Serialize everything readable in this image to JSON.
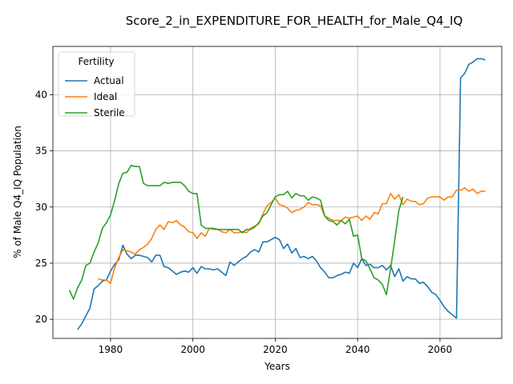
{
  "chart_data": {
    "type": "line",
    "title": "Score_2_in_EXPENDITURE_FOR_HEALTH_for_Male_Q4_IQ",
    "xlabel": "Years",
    "ylabel": "% of Male Q4_IQ Population",
    "xlim": [
      1966,
      2075
    ],
    "ylim": [
      18.3,
      44.3
    ],
    "xticks": [
      1980,
      2000,
      2020,
      2040,
      2060
    ],
    "yticks": [
      20,
      25,
      30,
      35,
      40
    ],
    "grid": true,
    "legend": {
      "title": "Fertility",
      "placement": "upper-left"
    },
    "series": [
      {
        "name": "Actual",
        "color": "#1f77b4",
        "points": [
          [
            1972,
            19.1
          ],
          [
            1973,
            19.6
          ],
          [
            1974,
            20.3
          ],
          [
            1975,
            21.0
          ],
          [
            1976,
            22.7
          ],
          [
            1977,
            23.0
          ],
          [
            1978,
            23.4
          ],
          [
            1979,
            23.5
          ],
          [
            1980,
            24.3
          ],
          [
            1981,
            24.9
          ],
          [
            1982,
            25.3
          ],
          [
            1983,
            26.6
          ],
          [
            1984,
            25.8
          ],
          [
            1985,
            25.4
          ],
          [
            1986,
            25.7
          ],
          [
            1987,
            25.7
          ],
          [
            1988,
            25.6
          ],
          [
            1989,
            25.5
          ],
          [
            1990,
            25.1
          ],
          [
            1991,
            25.7
          ],
          [
            1992,
            25.7
          ],
          [
            1993,
            24.7
          ],
          [
            1994,
            24.6
          ],
          [
            1995,
            24.3
          ],
          [
            1996,
            24.0
          ],
          [
            1997,
            24.2
          ],
          [
            1998,
            24.3
          ],
          [
            1999,
            24.2
          ],
          [
            2000,
            24.6
          ],
          [
            2001,
            24.1
          ],
          [
            2002,
            24.7
          ],
          [
            2003,
            24.5
          ],
          [
            2004,
            24.5
          ],
          [
            2005,
            24.4
          ],
          [
            2006,
            24.5
          ],
          [
            2007,
            24.2
          ],
          [
            2008,
            23.9
          ],
          [
            2009,
            25.1
          ],
          [
            2010,
            24.8
          ],
          [
            2011,
            25.1
          ],
          [
            2012,
            25.4
          ],
          [
            2013,
            25.6
          ],
          [
            2014,
            26.0
          ],
          [
            2015,
            26.2
          ],
          [
            2016,
            26.0
          ],
          [
            2017,
            26.9
          ],
          [
            2018,
            26.9
          ],
          [
            2019,
            27.1
          ],
          [
            2020,
            27.3
          ],
          [
            2021,
            27.1
          ],
          [
            2022,
            26.3
          ],
          [
            2023,
            26.7
          ],
          [
            2024,
            25.9
          ],
          [
            2025,
            26.3
          ],
          [
            2026,
            25.5
          ],
          [
            2027,
            25.6
          ],
          [
            2028,
            25.4
          ],
          [
            2029,
            25.6
          ],
          [
            2030,
            25.2
          ],
          [
            2031,
            24.6
          ],
          [
            2032,
            24.2
          ],
          [
            2033,
            23.7
          ],
          [
            2034,
            23.7
          ],
          [
            2035,
            23.9
          ],
          [
            2036,
            24.0
          ],
          [
            2037,
            24.2
          ],
          [
            2038,
            24.1
          ],
          [
            2039,
            25.0
          ],
          [
            2040,
            24.6
          ],
          [
            2041,
            25.4
          ],
          [
            2042,
            24.8
          ],
          [
            2043,
            24.9
          ],
          [
            2044,
            24.6
          ],
          [
            2045,
            24.6
          ],
          [
            2046,
            24.8
          ],
          [
            2047,
            24.4
          ],
          [
            2048,
            24.8
          ],
          [
            2049,
            23.8
          ],
          [
            2050,
            24.5
          ],
          [
            2051,
            23.4
          ],
          [
            2052,
            23.8
          ],
          [
            2053,
            23.6
          ],
          [
            2054,
            23.6
          ],
          [
            2055,
            23.2
          ],
          [
            2056,
            23.3
          ],
          [
            2057,
            22.9
          ],
          [
            2058,
            22.4
          ],
          [
            2059,
            22.2
          ],
          [
            2060,
            21.7
          ],
          [
            2061,
            21.1
          ],
          [
            2062,
            20.7
          ],
          [
            2063,
            20.4
          ],
          [
            2064,
            20.1
          ],
          [
            2065,
            41.5
          ],
          [
            2066,
            41.9
          ],
          [
            2067,
            42.7
          ],
          [
            2068,
            42.9
          ],
          [
            2069,
            43.2
          ],
          [
            2070,
            43.2
          ],
          [
            2071,
            43.1
          ]
        ]
      },
      {
        "name": "Ideal",
        "color": "#ff7f0e",
        "points": [
          [
            1977,
            23.6
          ],
          [
            1978,
            23.5
          ],
          [
            1979,
            23.5
          ],
          [
            1980,
            23.2
          ],
          [
            1981,
            24.6
          ],
          [
            1982,
            25.5
          ],
          [
            1983,
            26.2
          ],
          [
            1984,
            26.1
          ],
          [
            1985,
            26.0
          ],
          [
            1986,
            25.8
          ],
          [
            1987,
            26.2
          ],
          [
            1988,
            26.4
          ],
          [
            1989,
            26.7
          ],
          [
            1990,
            27.2
          ],
          [
            1991,
            28.0
          ],
          [
            1992,
            28.4
          ],
          [
            1993,
            28.0
          ],
          [
            1994,
            28.7
          ],
          [
            1995,
            28.6
          ],
          [
            1996,
            28.8
          ],
          [
            1997,
            28.4
          ],
          [
            1998,
            28.2
          ],
          [
            1999,
            27.8
          ],
          [
            2000,
            27.7
          ],
          [
            2001,
            27.2
          ],
          [
            2002,
            27.7
          ],
          [
            2003,
            27.4
          ],
          [
            2004,
            28.1
          ],
          [
            2005,
            28.0
          ],
          [
            2006,
            28.0
          ],
          [
            2007,
            27.8
          ],
          [
            2008,
            27.7
          ],
          [
            2009,
            28.0
          ],
          [
            2010,
            27.7
          ],
          [
            2011,
            27.7
          ],
          [
            2012,
            27.8
          ],
          [
            2013,
            27.7
          ],
          [
            2014,
            28.1
          ],
          [
            2015,
            28.3
          ],
          [
            2016,
            28.5
          ],
          [
            2017,
            29.4
          ],
          [
            2018,
            30.1
          ],
          [
            2019,
            30.4
          ],
          [
            2020,
            30.8
          ],
          [
            2021,
            30.2
          ],
          [
            2022,
            30.1
          ],
          [
            2023,
            29.9
          ],
          [
            2024,
            29.5
          ],
          [
            2025,
            29.7
          ],
          [
            2026,
            29.8
          ],
          [
            2027,
            30.0
          ],
          [
            2028,
            30.4
          ],
          [
            2029,
            30.2
          ],
          [
            2030,
            30.2
          ],
          [
            2031,
            30.1
          ],
          [
            2032,
            29.2
          ],
          [
            2033,
            29.0
          ],
          [
            2034,
            28.8
          ],
          [
            2035,
            28.8
          ],
          [
            2036,
            28.8
          ],
          [
            2037,
            29.1
          ],
          [
            2038,
            29.0
          ],
          [
            2039,
            29.1
          ],
          [
            2040,
            29.2
          ],
          [
            2041,
            28.8
          ],
          [
            2042,
            29.2
          ],
          [
            2043,
            28.9
          ],
          [
            2044,
            29.5
          ],
          [
            2045,
            29.4
          ],
          [
            2046,
            30.3
          ],
          [
            2047,
            30.3
          ],
          [
            2048,
            31.2
          ],
          [
            2049,
            30.7
          ],
          [
            2050,
            31.1
          ],
          [
            2051,
            30.2
          ],
          [
            2052,
            30.7
          ],
          [
            2053,
            30.5
          ],
          [
            2054,
            30.5
          ],
          [
            2055,
            30.2
          ],
          [
            2056,
            30.3
          ],
          [
            2057,
            30.8
          ],
          [
            2058,
            30.9
          ],
          [
            2059,
            30.9
          ],
          [
            2060,
            30.9
          ],
          [
            2061,
            30.6
          ],
          [
            2062,
            30.9
          ],
          [
            2063,
            30.9
          ],
          [
            2064,
            31.5
          ],
          [
            2065,
            31.5
          ],
          [
            2066,
            31.7
          ],
          [
            2067,
            31.4
          ],
          [
            2068,
            31.6
          ],
          [
            2069,
            31.2
          ],
          [
            2070,
            31.4
          ],
          [
            2071,
            31.4
          ]
        ]
      },
      {
        "name": "Sterile",
        "color": "#2ca02c",
        "points": [
          [
            1970,
            22.6
          ],
          [
            1971,
            21.8
          ],
          [
            1972,
            22.8
          ],
          [
            1973,
            23.5
          ],
          [
            1974,
            24.8
          ],
          [
            1975,
            25.0
          ],
          [
            1976,
            26.0
          ],
          [
            1977,
            26.8
          ],
          [
            1978,
            28.1
          ],
          [
            1979,
            28.6
          ],
          [
            1980,
            29.3
          ],
          [
            1981,
            30.6
          ],
          [
            1982,
            32.1
          ],
          [
            1983,
            33.0
          ],
          [
            1984,
            33.1
          ],
          [
            1985,
            33.7
          ],
          [
            1986,
            33.6
          ],
          [
            1987,
            33.6
          ],
          [
            1988,
            32.1
          ],
          [
            1989,
            31.9
          ],
          [
            1990,
            31.9
          ],
          [
            1991,
            31.9
          ],
          [
            1992,
            31.9
          ],
          [
            1993,
            32.2
          ],
          [
            1994,
            32.1
          ],
          [
            1995,
            32.2
          ],
          [
            1996,
            32.2
          ],
          [
            1997,
            32.2
          ],
          [
            1998,
            31.9
          ],
          [
            1999,
            31.4
          ],
          [
            2000,
            31.2
          ],
          [
            2001,
            31.2
          ],
          [
            2002,
            28.4
          ],
          [
            2003,
            28.1
          ],
          [
            2004,
            28.1
          ],
          [
            2005,
            28.1
          ],
          [
            2006,
            28.0
          ],
          [
            2007,
            28.0
          ],
          [
            2008,
            28.0
          ],
          [
            2009,
            28.0
          ],
          [
            2010,
            28.0
          ],
          [
            2011,
            28.0
          ],
          [
            2012,
            27.7
          ],
          [
            2013,
            28.0
          ],
          [
            2014,
            28.0
          ],
          [
            2015,
            28.2
          ],
          [
            2016,
            28.6
          ],
          [
            2017,
            29.2
          ],
          [
            2018,
            29.5
          ],
          [
            2019,
            30.2
          ],
          [
            2020,
            30.9
          ],
          [
            2021,
            31.1
          ],
          [
            2022,
            31.1
          ],
          [
            2023,
            31.4
          ],
          [
            2024,
            30.8
          ],
          [
            2025,
            31.2
          ],
          [
            2026,
            31.0
          ],
          [
            2027,
            31.0
          ],
          [
            2028,
            30.6
          ],
          [
            2029,
            30.9
          ],
          [
            2030,
            30.8
          ],
          [
            2031,
            30.6
          ],
          [
            2032,
            29.2
          ],
          [
            2033,
            28.8
          ],
          [
            2034,
            28.7
          ],
          [
            2035,
            28.4
          ],
          [
            2036,
            28.8
          ],
          [
            2037,
            28.5
          ],
          [
            2038,
            28.9
          ],
          [
            2039,
            27.4
          ],
          [
            2040,
            27.5
          ],
          [
            2041,
            25.4
          ],
          [
            2042,
            25.2
          ],
          [
            2043,
            24.5
          ],
          [
            2044,
            23.7
          ],
          [
            2045,
            23.5
          ],
          [
            2046,
            23.1
          ],
          [
            2047,
            22.2
          ],
          [
            2048,
            24.5
          ],
          [
            2049,
            27.0
          ],
          [
            2050,
            29.7
          ],
          [
            2051,
            30.9
          ]
        ]
      }
    ]
  }
}
